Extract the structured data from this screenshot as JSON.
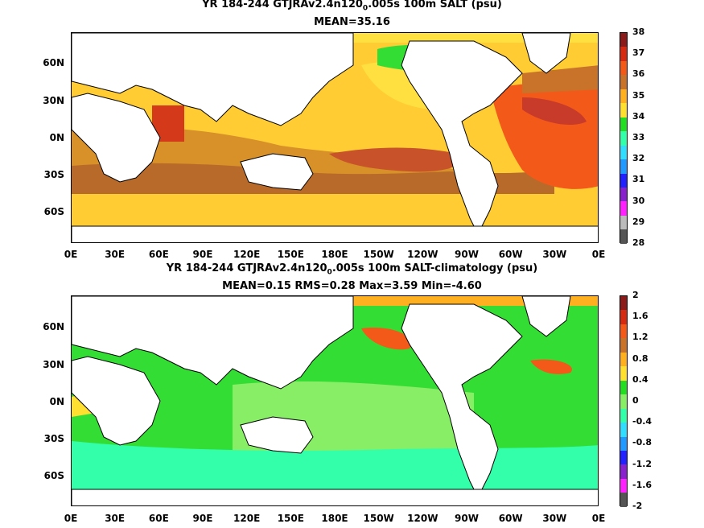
{
  "panels": [
    {
      "title_pre": "YR 184-244 GTJRAv2.4n120",
      "title_sub": "0",
      "title_post": ".005s 100m SALT (psu)",
      "subtitle": "MEAN=35.16",
      "colorbar_labels": [
        "38",
        "37",
        "36",
        "35",
        "34",
        "33",
        "32",
        "31",
        "30",
        "29",
        "28"
      ],
      "colorbar_colors": [
        "#8b1a1a",
        "#d42b12",
        "#f35a1a",
        "#c8722a",
        "#ffb020",
        "#ffe030",
        "#22dd22",
        "#33ffaa",
        "#33ddff",
        "#2299ff",
        "#2222ff",
        "#8822cc",
        "#ff22ff",
        "#bbbbbb",
        "#555555"
      ]
    },
    {
      "title_pre": "YR 184-244 GTJRAv2.4n120",
      "title_sub": "0",
      "title_post": ".005s 100m SALT-climatology (psu)",
      "subtitle": "MEAN=0.15   RMS=0.28   Max=3.59   Min=-4.60",
      "colorbar_labels": [
        "2",
        "1.6",
        "1.2",
        "0.8",
        "0.4",
        "0",
        "-0.4",
        "-0.8",
        "-1.2",
        "-1.6",
        "-2"
      ],
      "colorbar_colors": [
        "#8b1a1a",
        "#d42b12",
        "#f35a1a",
        "#c8722a",
        "#ffb020",
        "#ffe030",
        "#22dd22",
        "#88ee66",
        "#33ffaa",
        "#33ddff",
        "#2299ff",
        "#2222ff",
        "#8822cc",
        "#ff22ff",
        "#555555"
      ]
    }
  ],
  "y_labels": [
    "60N",
    "30N",
    "0N",
    "30S",
    "60S"
  ],
  "x_labels": [
    "0E",
    "30E",
    "60E",
    "90E",
    "120E",
    "150E",
    "180E",
    "150W",
    "120W",
    "90W",
    "60W",
    "30W",
    "0E"
  ],
  "colors": {
    "land": "#ffffff",
    "coast": "#000000"
  }
}
